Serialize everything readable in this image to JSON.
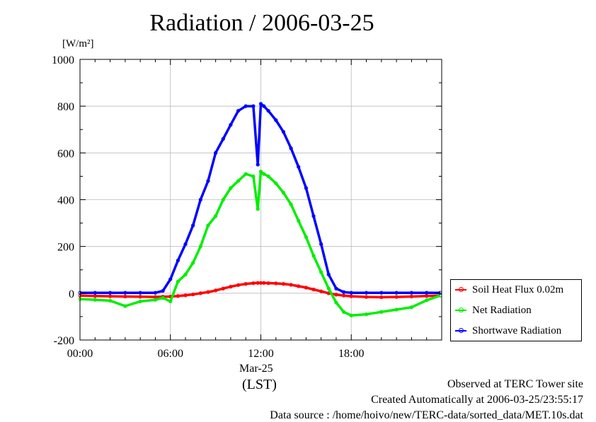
{
  "chart_data": {
    "type": "line",
    "title": "Radiation / 2006-03-25",
    "ylabel_unit": "[W/m²]",
    "xlabel": "(LST)",
    "x_date_label": "Mar-25",
    "x_tick_labels": [
      "00:00",
      "06:00",
      "12:00",
      "18:00"
    ],
    "y_tick_labels": [
      "1000",
      "800",
      "600",
      "400",
      "200",
      "0",
      "-200"
    ],
    "xlim": [
      0,
      24
    ],
    "ylim": [
      -200,
      1000
    ],
    "grid": true,
    "legend_position": "bottom-right outside",
    "x_hours": [
      0,
      1,
      2,
      3,
      4,
      5,
      5.5,
      6,
      6.5,
      7,
      7.5,
      8,
      8.5,
      9,
      9.5,
      10,
      10.5,
      11,
      11.5,
      11.8,
      12,
      12.2,
      12.5,
      13,
      13.5,
      14,
      14.5,
      15,
      15.5,
      16,
      16.5,
      17,
      17.5,
      18,
      19,
      20,
      21,
      22,
      23,
      23.9
    ],
    "series": [
      {
        "name": "Soil Heat Flux 0.02m",
        "color": "#ff0000",
        "values": [
          -10,
          -12,
          -13,
          -14,
          -15,
          -16,
          -15,
          -14,
          -12,
          -9,
          -5,
          0,
          5,
          12,
          20,
          28,
          35,
          40,
          43,
          44,
          44,
          44,
          43,
          42,
          40,
          36,
          30,
          24,
          16,
          8,
          0,
          -6,
          -10,
          -13,
          -16,
          -17,
          -16,
          -14,
          -12,
          -10
        ]
      },
      {
        "name": "Net Radiation",
        "color": "#00ee00",
        "values": [
          -25,
          -28,
          -32,
          -55,
          -35,
          -28,
          -20,
          -35,
          50,
          80,
          130,
          200,
          290,
          330,
          400,
          450,
          480,
          510,
          500,
          360,
          520,
          510,
          500,
          470,
          430,
          380,
          310,
          240,
          160,
          90,
          20,
          -40,
          -80,
          -95,
          -90,
          -80,
          -70,
          -60,
          -30,
          -10
        ]
      },
      {
        "name": "Shortwave Radiation",
        "color": "#0000ff",
        "values": [
          2,
          2,
          2,
          2,
          2,
          2,
          10,
          60,
          140,
          210,
          290,
          400,
          480,
          600,
          660,
          720,
          780,
          800,
          800,
          550,
          810,
          800,
          780,
          740,
          690,
          620,
          540,
          450,
          330,
          210,
          80,
          20,
          5,
          2,
          2,
          2,
          2,
          2,
          2,
          2
        ]
      }
    ]
  },
  "footer": {
    "observed": "Observed at TERC Tower site",
    "created": "Created Automatically at 2006-03-25/23:55:17",
    "source": "Data source : /home/hoivo/new/TERC-data/sorted_data/MET.10s.dat"
  }
}
